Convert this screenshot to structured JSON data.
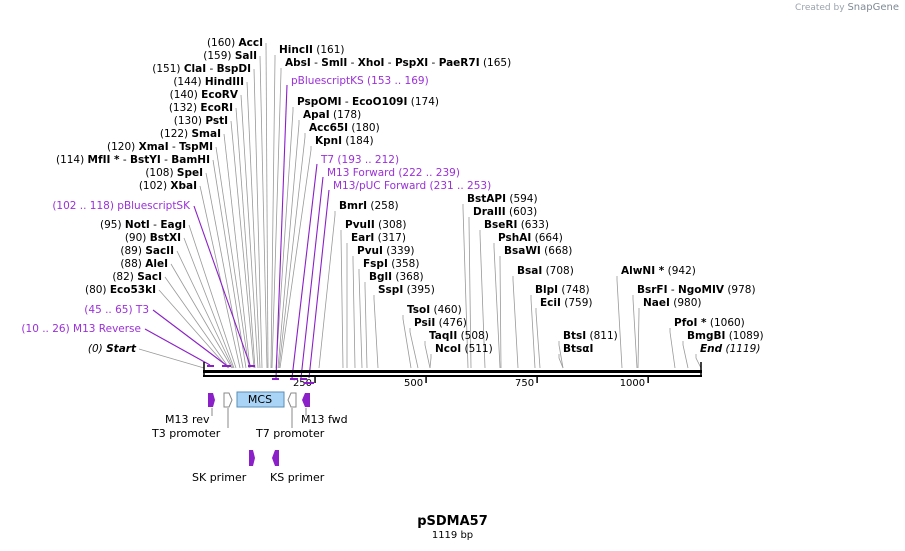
{
  "app": {
    "credit_prefix": "Created by",
    "credit_brand": "SnapGene"
  },
  "plasmid": {
    "name": "pSDMA57",
    "length_label": "1119 bp",
    "length": 1119
  },
  "colors": {
    "site_text": "#000000",
    "primer_text": "#9b30d9",
    "feature_purple": "#8b1fc8",
    "mcs_fill": "#a9d4f5",
    "backbone": "#000000"
  },
  "axis": {
    "ticks": [
      250,
      500,
      750,
      1000
    ]
  },
  "sites": [
    {
      "pos": "(160)",
      "name": "AccI"
    },
    {
      "pos": "(159)",
      "name": "SalI"
    },
    {
      "pos": "(151)",
      "name": "ClaI",
      "name2": "BspDI"
    },
    {
      "pos": "(144)",
      "name": "HindIII"
    },
    {
      "pos": "(140)",
      "name": "EcoRV"
    },
    {
      "pos": "(132)",
      "name": "EcoRI"
    },
    {
      "pos": "(130)",
      "name": "PstI"
    },
    {
      "pos": "(122)",
      "name": "SmaI"
    },
    {
      "pos": "(120)",
      "name": "XmaI",
      "name2": "TspMI"
    },
    {
      "pos": "(114)",
      "name": "MfII *",
      "name2": "BstYI",
      "name3": "BamHI"
    },
    {
      "pos": "(108)",
      "name": "SpeI"
    },
    {
      "pos": "(102)",
      "name": "XbaI"
    },
    {
      "pos": "(95)",
      "name": "NotI",
      "name2": "EagI"
    },
    {
      "pos": "(90)",
      "name": "BstXI"
    },
    {
      "pos": "(89)",
      "name": "SacII"
    },
    {
      "pos": "(88)",
      "name": "AleI"
    },
    {
      "pos": "(82)",
      "name": "SacI"
    },
    {
      "pos": "(80)",
      "name": "Eco53kI"
    },
    {
      "pos": "(161)",
      "name": "HincII"
    },
    {
      "pos": "(165)",
      "name": "AbsI",
      "name2": "SmlI",
      "name3": "XhoI",
      "name4": "PspXI",
      "name5": "PaeR7I"
    },
    {
      "pos": "(174)",
      "name": "PspOMI",
      "name2": "EcoO109I"
    },
    {
      "pos": "(178)",
      "name": "ApaI"
    },
    {
      "pos": "(180)",
      "name": "Acc65I"
    },
    {
      "pos": "(184)",
      "name": "KpnI"
    },
    {
      "pos": "(258)",
      "name": "BmrI"
    },
    {
      "pos": "(308)",
      "name": "PvuII"
    },
    {
      "pos": "(317)",
      "name": "EarI"
    },
    {
      "pos": "(339)",
      "name": "PvuI"
    },
    {
      "pos": "(358)",
      "name": "FspI"
    },
    {
      "pos": "(368)",
      "name": "BglI"
    },
    {
      "pos": "(395)",
      "name": "SspI"
    },
    {
      "pos": "(460)",
      "name": "TsoI"
    },
    {
      "pos": "(476)",
      "name": "PsiI"
    },
    {
      "pos": "(508)",
      "name": "TaqII"
    },
    {
      "pos": "(511)",
      "name": "NcoI"
    },
    {
      "pos": "(594)",
      "name": "BstAPI"
    },
    {
      "pos": "(603)",
      "name": "DraIII"
    },
    {
      "pos": "(633)",
      "name": "BseRI"
    },
    {
      "pos": "(664)",
      "name": "PshAI"
    },
    {
      "pos": "(668)",
      "name": "BsaWI"
    },
    {
      "pos": "(708)",
      "name": "BsaI"
    },
    {
      "pos": "(748)",
      "name": "BlpI"
    },
    {
      "pos": "(759)",
      "name": "EciI"
    },
    {
      "pos": "(811)",
      "name": "BtsI"
    },
    {
      "pos": "",
      "name": "BtsαI"
    },
    {
      "pos": "(942)",
      "name": "AlwNI *"
    },
    {
      "pos": "(978)",
      "name": "BsrFI",
      "name2": "NgoMIV"
    },
    {
      "pos": "(980)",
      "name": "NaeI"
    },
    {
      "pos": "(1060)",
      "name": "PfoI *"
    },
    {
      "pos": "(1089)",
      "name": "BmgBI"
    },
    {
      "pos": "(1119)",
      "name": "End"
    },
    {
      "pos": "(0)",
      "name": "Start"
    }
  ],
  "primers": [
    {
      "name": "pBluescriptKS",
      "range": "(153 .. 169)"
    },
    {
      "name": "T7",
      "range": "(193 .. 212)"
    },
    {
      "name": "M13 Forward",
      "range": "(222 .. 239)"
    },
    {
      "name": "M13/pUC Forward",
      "range": "(231 .. 253)"
    },
    {
      "name": "pBluescriptSK",
      "range": "(102 .. 118)"
    },
    {
      "name": "T3",
      "range": "(45 .. 65)"
    },
    {
      "name": "M13 Reverse",
      "range": "(10 .. 26)"
    }
  ],
  "features": {
    "m13_rev": "M13 rev",
    "t3_promoter": "T3 promoter",
    "mcs": "MCS",
    "t7_promoter": "T7 promoter",
    "m13_fwd": "M13 fwd",
    "sk_primer": "SK primer",
    "ks_primer": "KS primer"
  }
}
